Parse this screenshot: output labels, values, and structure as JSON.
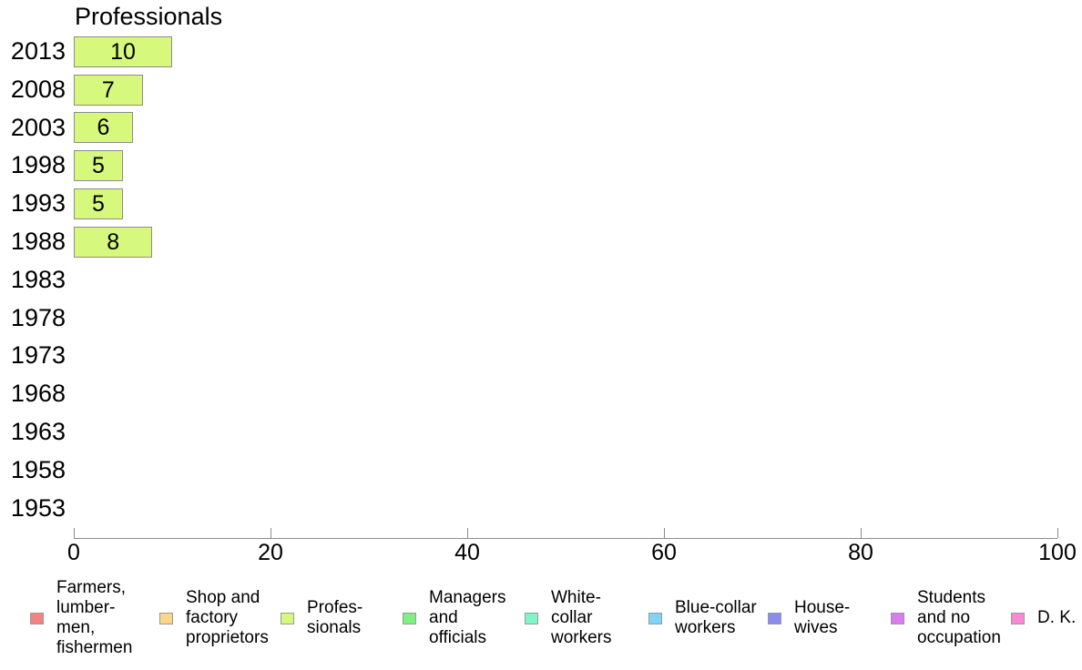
{
  "chart_data": {
    "type": "bar",
    "orientation": "horizontal",
    "title": "Professionals",
    "xlabel": "",
    "ylabel": "",
    "xlim": [
      0,
      100
    ],
    "x_ticks": [
      "0",
      "20",
      "40",
      "60",
      "80",
      "100"
    ],
    "grid": false,
    "legend_position": "bottom",
    "categories": [
      "2013",
      "2008",
      "2003",
      "1998",
      "1993",
      "1988",
      "1983",
      "1978",
      "1973",
      "1968",
      "1963",
      "1958",
      "1953"
    ],
    "series": [
      {
        "name": "Professionals",
        "values": [
          10,
          7,
          6,
          5,
          5,
          8,
          null,
          null,
          null,
          null,
          null,
          null,
          null
        ],
        "color": "#d6f87d",
        "border_color": "#8c8c8c"
      }
    ],
    "axis_color": "#8c8c8c",
    "legend": [
      {
        "label": "Farmers, lumbermen, fishermen",
        "lines": [
          "Farmers,",
          "lumber-",
          "men,",
          "fishermen"
        ],
        "color": "#f48282"
      },
      {
        "label": "Shop and factory proprietors",
        "lines": [
          "Shop and",
          "factory",
          "proprietors"
        ],
        "color": "#f9d786"
      },
      {
        "label": "Professionals",
        "lines": [
          "Profes-",
          "sionals"
        ],
        "color": "#d6f87d"
      },
      {
        "label": "Managers and officials",
        "lines": [
          "Managers",
          "and",
          "officials"
        ],
        "color": "#7ef07e"
      },
      {
        "label": "White-collar workers",
        "lines": [
          "White-",
          "collar",
          "workers"
        ],
        "color": "#80f5c8"
      },
      {
        "label": "Blue-collar workers",
        "lines": [
          "Blue-collar",
          "workers"
        ],
        "color": "#7fd2f8"
      },
      {
        "label": "Housewives",
        "lines": [
          "House-",
          "wives"
        ],
        "color": "#8b8bf0"
      },
      {
        "label": "Students and no occupation",
        "lines": [
          "Students",
          "and no",
          "occupation"
        ],
        "color": "#dc7bf0"
      },
      {
        "label": "D. K.",
        "lines": [
          "D. K."
        ],
        "color": "#fa87d4"
      }
    ]
  }
}
